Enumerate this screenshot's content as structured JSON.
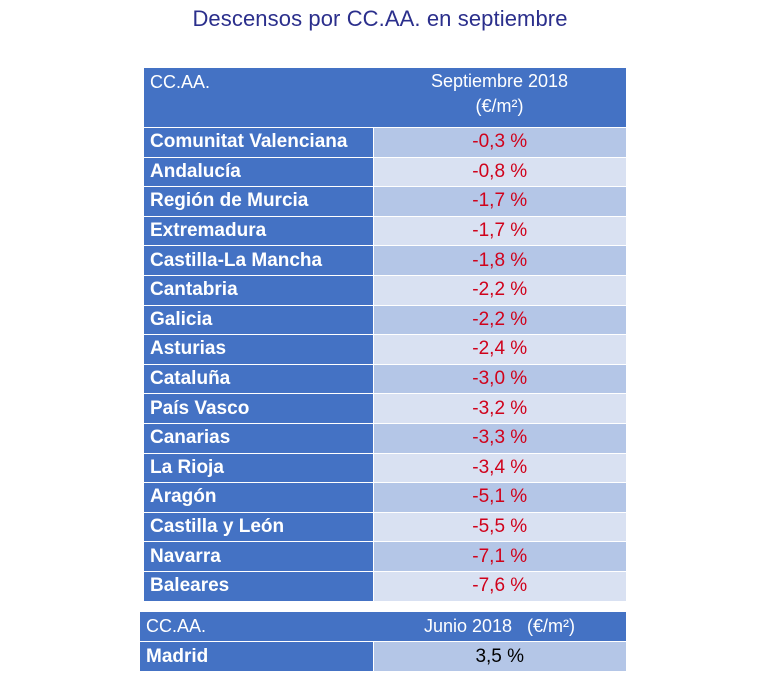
{
  "title": "Descensos por CC.AA. en septiembre",
  "table1": {
    "header": {
      "col1": "CC.AA.",
      "col2_line1": "Septiembre 2018",
      "col2_line2": "(€/m²)"
    },
    "rows": [
      {
        "name": "Comunitat Valenciana",
        "value": "-0,3 %"
      },
      {
        "name": "Andalucía",
        "value": "-0,8 %"
      },
      {
        "name": "Región de Murcia",
        "value": "-1,7 %"
      },
      {
        "name": "Extremadura",
        "value": "-1,7 %"
      },
      {
        "name": "Castilla-La Mancha",
        "value": "-1,8 %"
      },
      {
        "name": "Cantabria",
        "value": "-2,2 %"
      },
      {
        "name": "Galicia",
        "value": "-2,2 %"
      },
      {
        "name": "Asturias",
        "value": "-2,4 %"
      },
      {
        "name": "Cataluña",
        "value": "-3,0 %"
      },
      {
        "name": "País Vasco",
        "value": "-3,2 %"
      },
      {
        "name": "Canarias",
        "value": "-3,3 %"
      },
      {
        "name": "La Rioja",
        "value": "-3,4 %"
      },
      {
        "name": "Aragón",
        "value": "-5,1 %"
      },
      {
        "name": "Castilla y León",
        "value": "-5,5 %"
      },
      {
        "name": "Navarra",
        "value": "-7,1 %"
      },
      {
        "name": "Baleares",
        "value": "-7,6 %"
      }
    ]
  },
  "table2": {
    "header": {
      "col1": "CC.AA.",
      "col2": "Junio 2018   (€/m²)"
    },
    "rows": [
      {
        "name": "Madrid",
        "value": "3,5 %"
      }
    ]
  },
  "colors": {
    "title": "#2b2f8c",
    "header_blue": "#4472c4",
    "band_dark": "#b4c6e7",
    "band_light": "#d9e1f2",
    "negative_red": "#d0021b"
  }
}
